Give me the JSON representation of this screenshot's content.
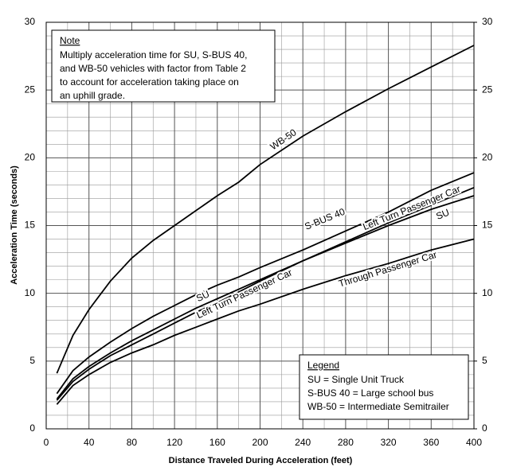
{
  "chart_data": {
    "type": "line",
    "x_label": "Distance Traveled During Acceleration (feet)",
    "y_label": "Acceleration Time (seconds)",
    "x": [
      10,
      25,
      40,
      60,
      80,
      100,
      120,
      140,
      160,
      180,
      200,
      240,
      280,
      320,
      360,
      400
    ],
    "series": [
      {
        "name": "WB-50",
        "color": "#000000",
        "values": [
          4.1,
          6.9,
          8.8,
          10.9,
          12.6,
          13.9,
          15.0,
          16.1,
          17.2,
          18.2,
          19.5,
          21.6,
          23.4,
          25.1,
          26.7,
          28.3
        ]
      },
      {
        "name": "S-BUS 40",
        "color": "#000000",
        "values": [
          2.6,
          4.3,
          5.3,
          6.4,
          7.4,
          8.3,
          9.1,
          9.9,
          10.6,
          11.2,
          11.9,
          13.2,
          14.6,
          16.0,
          17.6,
          18.9
        ]
      },
      {
        "name": "Left Turn Passenger Car",
        "color": "#000000",
        "values": [
          2.2,
          3.7,
          4.6,
          5.6,
          6.5,
          7.3,
          8.1,
          8.9,
          9.6,
          10.3,
          11.0,
          12.4,
          13.8,
          15.2,
          16.5,
          17.8
        ]
      },
      {
        "name": "SU",
        "color": "#000000",
        "values": [
          2.1,
          3.5,
          4.4,
          5.4,
          6.2,
          7.0,
          7.8,
          8.6,
          9.3,
          10.1,
          10.9,
          12.4,
          13.7,
          15.0,
          16.2,
          17.2
        ]
      },
      {
        "name": "Through Passenger Car",
        "color": "#000000",
        "values": [
          1.8,
          3.2,
          4.0,
          4.9,
          5.6,
          6.2,
          6.9,
          7.5,
          8.1,
          8.7,
          9.2,
          10.3,
          11.3,
          12.2,
          13.2,
          14.0
        ]
      }
    ],
    "xlim": [
      0,
      400
    ],
    "xticks": [
      0,
      40,
      80,
      120,
      160,
      200,
      240,
      280,
      320,
      360,
      400
    ],
    "ylim": [
      0,
      30
    ],
    "yticks": [
      0,
      5,
      10,
      15,
      20,
      25,
      30
    ],
    "y2lim": [
      0,
      30
    ],
    "y2ticks": [
      0,
      5,
      10,
      15,
      20,
      25,
      30
    ],
    "grid": true,
    "note": {
      "title": "Note",
      "lines": [
        "Multiply acceleration time for SU, S-BUS 40,",
        "and WB-50 vehicles with factor from Table 2",
        "to account for acceleration taking place on",
        "an uphill grade."
      ]
    },
    "legend_box": {
      "title": "Legend",
      "lines": [
        "SU = Single Unit Truck",
        "S-BUS 40 = Large school bus",
        "WB-50 = Intermediate Semitrailer"
      ]
    }
  }
}
